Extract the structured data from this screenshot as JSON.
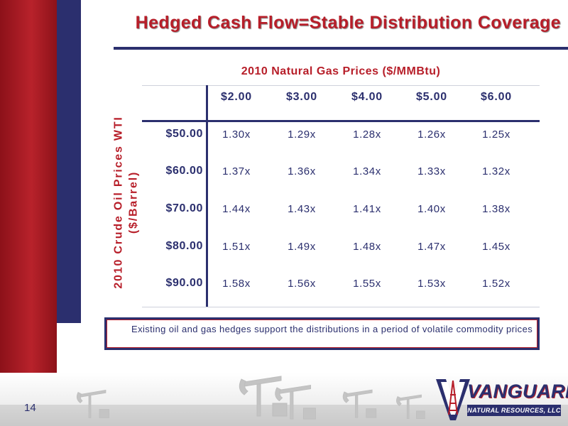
{
  "slide": {
    "title": "Hedged Cash Flow=Stable Distribution Coverage",
    "page_number": "14"
  },
  "table": {
    "column_title": "2010 Natural Gas Prices ($/MMBtu)",
    "row_title_line1": "2010 Crude Oil Prices WTI",
    "row_title_line2": "($/Barrel)",
    "columns": [
      "$2.00",
      "$3.00",
      "$4.00",
      "$5.00",
      "$6.00"
    ],
    "rows": [
      {
        "label": "$50.00",
        "values": [
          "1.30x",
          "1.29x",
          "1.28x",
          "1.26x",
          "1.25x"
        ]
      },
      {
        "label": "$60.00",
        "values": [
          "1.37x",
          "1.36x",
          "1.34x",
          "1.33x",
          "1.32x"
        ]
      },
      {
        "label": "$70.00",
        "values": [
          "1.44x",
          "1.43x",
          "1.41x",
          "1.40x",
          "1.38x"
        ]
      },
      {
        "label": "$80.00",
        "values": [
          "1.51x",
          "1.49x",
          "1.48x",
          "1.47x",
          "1.45x"
        ]
      },
      {
        "label": "$90.00",
        "values": [
          "1.58x",
          "1.56x",
          "1.55x",
          "1.53x",
          "1.52x"
        ]
      }
    ]
  },
  "note": {
    "text": "Existing oil and gas hedges support the distributions in a period of volatile commodity prices"
  },
  "logo": {
    "word": "VANGUARD",
    "subtitle": "NATURAL RESOURCES, LLC"
  },
  "colors": {
    "accent_red": "#b71e29",
    "navy": "#2b2f6e"
  },
  "icons": {
    "logo_mark": "derrick-v-icon",
    "footer_art": "oil-pumpjack-icon"
  }
}
